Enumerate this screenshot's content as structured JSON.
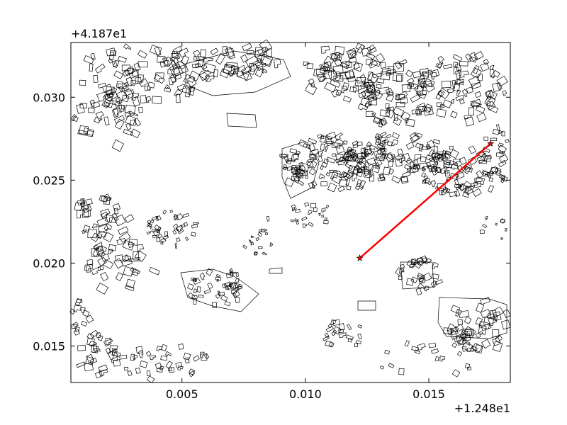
{
  "map": {
    "x_offset_label": "+1.248e1",
    "y_offset_label": "+4.187e1",
    "x_ticks": [
      {
        "value": 0.005,
        "label": "0.005"
      },
      {
        "value": 0.01,
        "label": "0.010"
      },
      {
        "value": 0.015,
        "label": "0.015"
      }
    ],
    "y_ticks": [
      {
        "value": 0.015,
        "label": "0.015"
      },
      {
        "value": 0.02,
        "label": "0.020"
      },
      {
        "value": 0.025,
        "label": "0.025"
      },
      {
        "value": 0.03,
        "label": "0.030"
      }
    ],
    "xlim": [
      0.0005,
      0.0183
    ],
    "ylim": [
      0.0128,
      0.0333
    ],
    "route": {
      "color": "#ff0000",
      "start": {
        "x": 0.0122,
        "y": 0.0203
      },
      "end": {
        "x": 0.0175,
        "y": 0.0272
      }
    },
    "building_color": "#000000"
  }
}
